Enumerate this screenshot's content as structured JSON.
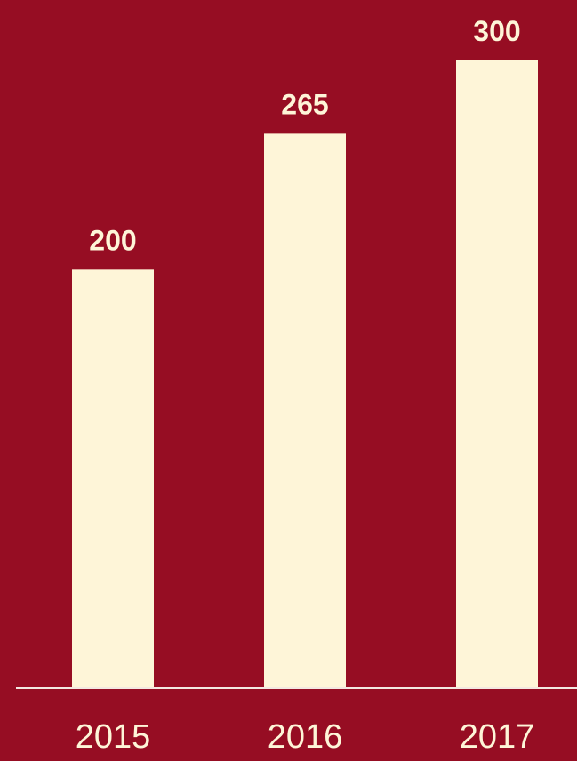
{
  "chart_data": {
    "type": "bar",
    "categories": [
      "2015",
      "2016",
      "2017"
    ],
    "values": [
      200,
      265,
      300
    ],
    "title": "",
    "xlabel": "",
    "ylabel": "",
    "ylim": [
      0,
      300
    ],
    "grid": false,
    "data_labels": [
      "200",
      "265",
      "300"
    ]
  },
  "colors": {
    "background": "#960D23",
    "bar": "#FEF5D8",
    "label": "#FEF5D8",
    "axis": "#F3E8E1"
  }
}
